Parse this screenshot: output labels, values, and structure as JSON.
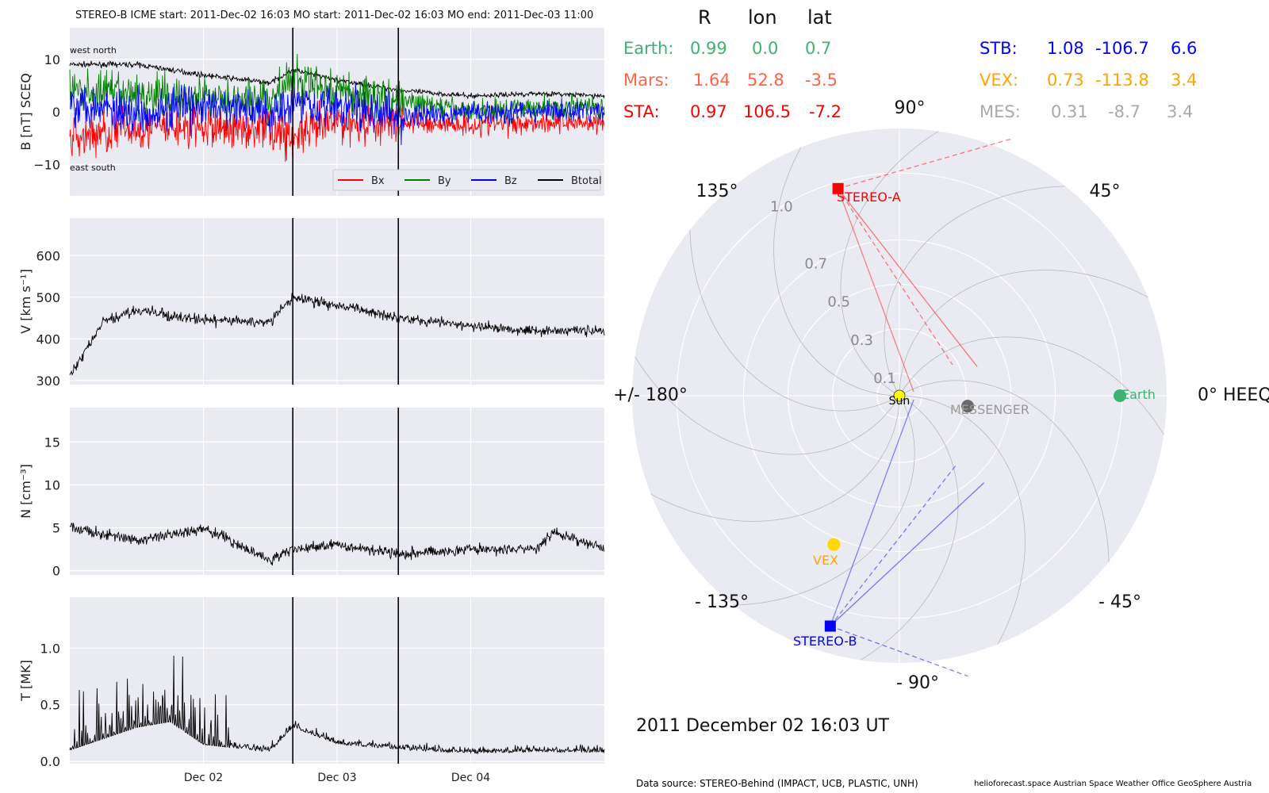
{
  "header": {
    "text": "STEREO-B    ICME start: 2011-Dec-02 16:03    MO start: 2011-Dec-02 16:03    MO end: 2011-Dec-03 11:00"
  },
  "colors": {
    "bx": "#ff0000",
    "by": "#007f00",
    "bz": "#0000ff",
    "btotal": "#000000",
    "earth": "#3cb371",
    "mars": "#ff6347",
    "sta": "#ff0000",
    "stb": "#0000ff",
    "vex": "#ffa500",
    "mes": "#a9a9a9",
    "panel_bg": "#eaeaf2"
  },
  "positions": {
    "headers": [
      "R",
      "lon",
      "lat"
    ],
    "rows_left": [
      {
        "name": "Earth:",
        "R": "0.99",
        "lon": "0.0",
        "lat": "0.7",
        "color": "#3cb371"
      },
      {
        "name": "Mars:",
        "R": "1.64",
        "lon": "52.8",
        "lat": "-3.5",
        "color": "#ff6347"
      },
      {
        "name": "STA:",
        "R": "0.97",
        "lon": "106.5",
        "lat": "-7.2",
        "color": "#ff0000"
      }
    ],
    "rows_right": [
      {
        "name": "STB:",
        "R": "1.08",
        "lon": "-106.7",
        "lat": "6.6",
        "color": "#0000ff"
      },
      {
        "name": "VEX:",
        "R": "0.73",
        "lon": "-113.8",
        "lat": "3.4",
        "color": "#ffa500"
      },
      {
        "name": "MES:",
        "R": "0.31",
        "lon": "-8.7",
        "lat": "3.4",
        "color": "#a9a9a9"
      }
    ]
  },
  "date_label": "2011 December 02  16:03 UT",
  "footer": {
    "source": "Data source: STEREO-Behind (IMPACT, UCB, PLASTIC, UNH)",
    "credits": "helioforecast.space   Austrian Space Weather Office   GeoSphere Austria"
  },
  "chart_data": [
    {
      "type": "line",
      "ylabel": "B [nT] SCEQ",
      "ylim": [
        -16,
        16
      ],
      "yticks": [
        -10,
        0,
        10
      ],
      "xlim_days": [
        "2011-12-01 00:00",
        "2011-12-05 00:00"
      ],
      "xticks": [
        "Dec 02",
        "Dec 03",
        "Dec 04"
      ],
      "event_lines": [
        "2011-12-02 16:03",
        "2011-12-03 11:00"
      ],
      "annotations": {
        "top_left": "west    north",
        "bottom_left": "east    south"
      },
      "legend": [
        "Bx",
        "By",
        "Bz",
        "Btotal"
      ],
      "legend_placement": "lower-right",
      "series": [
        {
          "name": "Btotal",
          "x": [
            "Dec 01 00:00",
            "Dec 01 12:00",
            "Dec 02 00:00",
            "Dec 02 12:00",
            "Dec 02 16:03",
            "Dec 03 00:00",
            "Dec 03 12:00",
            "Dec 04 00:00",
            "Dec 04 12:00",
            "Dec 05 00:00"
          ],
          "values": [
            9,
            9,
            7,
            5.5,
            8,
            6,
            4,
            3,
            3.5,
            3
          ]
        },
        {
          "name": "Bx",
          "x": [
            "Dec 01 00:00",
            "Dec 01 12:00",
            "Dec 02 00:00",
            "Dec 02 12:00",
            "Dec 02 16:03",
            "Dec 03 00:00",
            "Dec 03 12:00",
            "Dec 04 00:00",
            "Dec 04 12:00",
            "Dec 05 00:00"
          ],
          "values": [
            -5,
            -3,
            -3,
            -3,
            -5,
            -2,
            -2,
            -2.5,
            -2,
            -2
          ]
        },
        {
          "name": "By",
          "x": [
            "Dec 01 00:00",
            "Dec 01 12:00",
            "Dec 02 00:00",
            "Dec 02 12:00",
            "Dec 02 16:03",
            "Dec 03 00:00",
            "Dec 03 12:00",
            "Dec 04 00:00",
            "Dec 04 12:00",
            "Dec 05 00:00"
          ],
          "values": [
            4,
            3,
            3,
            2,
            6,
            4,
            2,
            0,
            1,
            1
          ]
        },
        {
          "name": "Bz",
          "x": [
            "Dec 01 00:00",
            "Dec 01 12:00",
            "Dec 02 00:00",
            "Dec 02 12:00",
            "Dec 02 16:03",
            "Dec 03 00:00",
            "Dec 03 12:00",
            "Dec 04 00:00",
            "Dec 04 12:00",
            "Dec 05 00:00"
          ],
          "values": [
            2,
            0,
            1,
            0,
            2,
            1,
            -1,
            0,
            0,
            0
          ]
        }
      ]
    },
    {
      "type": "line",
      "ylabel": "V [km s⁻¹]",
      "ylim": [
        290,
        690
      ],
      "yticks": [
        300,
        400,
        500,
        600
      ],
      "x": [
        "Dec 01 00:00",
        "Dec 01 06:00",
        "Dec 01 12:00",
        "Dec 01 18:00",
        "Dec 02 00:00",
        "Dec 02 12:00",
        "Dec 02 16:03",
        "Dec 03 00:00",
        "Dec 03 12:00",
        "Dec 04 00:00",
        "Dec 04 12:00",
        "Dec 05 00:00"
      ],
      "series": [
        {
          "name": "V",
          "values": [
            310,
            440,
            470,
            455,
            445,
            440,
            500,
            480,
            450,
            430,
            420,
            420
          ]
        }
      ]
    },
    {
      "type": "line",
      "ylabel": "N [cm⁻³]",
      "ylim": [
        -0.5,
        19
      ],
      "yticks": [
        0,
        5,
        10,
        15
      ],
      "x": [
        "Dec 01 00:00",
        "Dec 01 12:00",
        "Dec 01 21:00",
        "Dec 02 00:00",
        "Dec 02 12:00",
        "Dec 02 16:03",
        "Dec 03 00:00",
        "Dec 03 12:00",
        "Dec 04 00:00",
        "Dec 04 12:00",
        "Dec 04 15:00",
        "Dec 05 00:00"
      ],
      "series": [
        {
          "name": "N",
          "values": [
            5,
            3.5,
            4.5,
            5,
            1.2,
            2.5,
            3,
            2,
            2.5,
            2.5,
            4.5,
            2.5
          ]
        }
      ]
    },
    {
      "type": "line",
      "ylabel": "T [MK]",
      "ylim": [
        -0.02,
        1.45
      ],
      "yticks": [
        0.0,
        0.5,
        1.0
      ],
      "x": [
        "Dec 01 00:00",
        "Dec 01 12:00",
        "Dec 01 18:00",
        "Dec 02 00:00",
        "Dec 02 12:00",
        "Dec 02 16:03",
        "Dec 03 00:00",
        "Dec 03 12:00",
        "Dec 04 00:00",
        "Dec 04 12:00",
        "Dec 05 00:00"
      ],
      "series": [
        {
          "name": "T",
          "values": [
            0.1,
            0.3,
            0.35,
            0.15,
            0.08,
            0.3,
            0.15,
            0.1,
            0.07,
            0.08,
            0.08
          ]
        }
      ]
    },
    {
      "type": "scatter",
      "polar": true,
      "rlim": [
        0,
        1.2
      ],
      "r_ticks": [
        0.1,
        0.3,
        0.5,
        0.7,
        1.0
      ],
      "angle_labels": [
        "0° HEEQ",
        "45°",
        "90°",
        "135°",
        "+/- 180°",
        "- 135°",
        "- 90°",
        "- 45°"
      ],
      "objects": [
        {
          "name": "Sun",
          "r": 0.0,
          "lon": 0.0,
          "color": "#ffff00",
          "marker": "circle"
        },
        {
          "name": "MESSENGER",
          "r": 0.31,
          "lon": -8.7,
          "color": "#696969",
          "marker": "circle"
        },
        {
          "name": "Earth",
          "r": 0.99,
          "lon": 0.0,
          "color": "#3cb371",
          "marker": "circle"
        },
        {
          "name": "VEX",
          "r": 0.73,
          "lon": -113.8,
          "color": "#ffd700",
          "marker": "circle"
        },
        {
          "name": "STEREO-A",
          "r": 0.97,
          "lon": 106.5,
          "color": "#ff0000",
          "marker": "square"
        },
        {
          "name": "STEREO-B",
          "r": 1.08,
          "lon": -106.7,
          "color": "#0000ff",
          "marker": "square"
        }
      ]
    }
  ]
}
